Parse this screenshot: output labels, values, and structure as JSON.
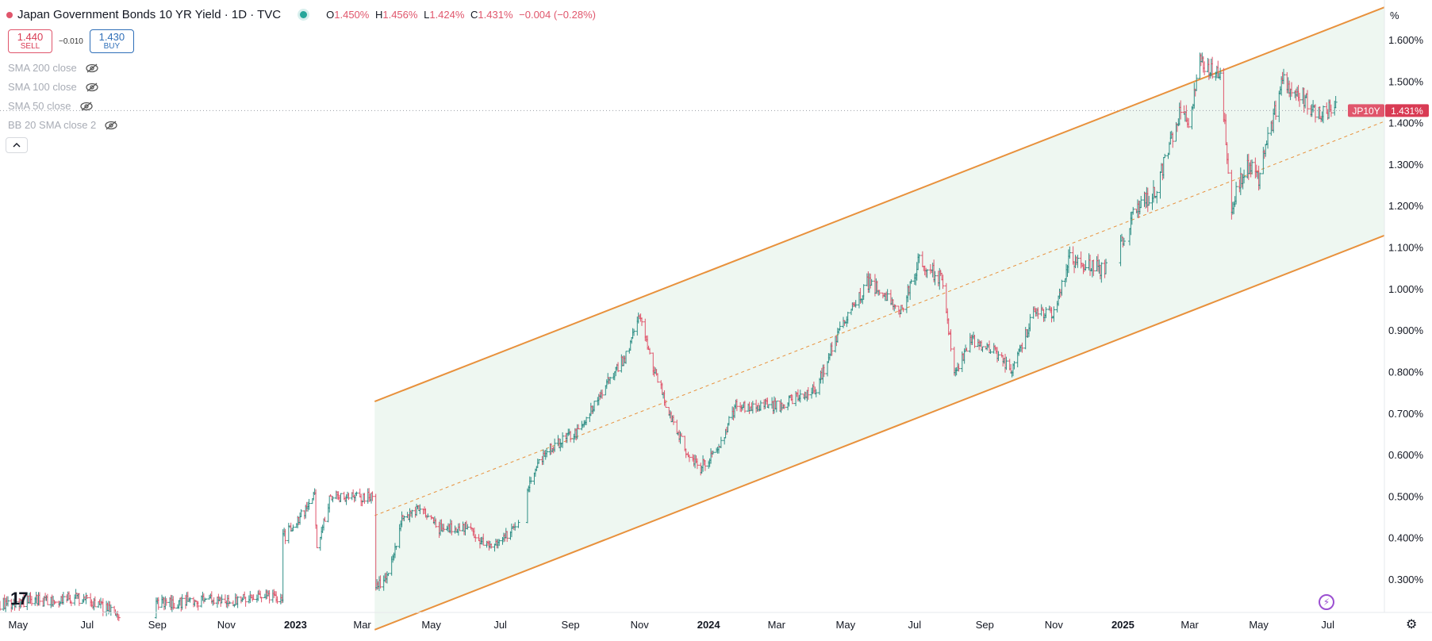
{
  "header": {
    "symbol_title": "Japan Government Bonds 10 YR Yield · 1D · TVC",
    "ohlc": {
      "o_label": "O",
      "o": "1.450%",
      "h_label": "H",
      "h": "1.456%",
      "l_label": "L",
      "l": "1.424%",
      "c_label": "C",
      "c": "1.431%",
      "change": "−0.004 (−0.28%)"
    }
  },
  "trade": {
    "sell_price": "1.440",
    "sell_label": "SELL",
    "spread": "−0.010",
    "buy_price": "1.430",
    "buy_label": "BUY"
  },
  "indicators": [
    {
      "label": "SMA 200 close",
      "icon": "eye-off-icon"
    },
    {
      "label": "SMA 100 close",
      "icon": "eye-off-icon"
    },
    {
      "label": "SMA 50 close",
      "icon": "eye-off-icon"
    },
    {
      "label": "BB 20 SMA close 2",
      "icon": "eye-off-icon"
    }
  ],
  "price_axis": {
    "unit": "%",
    "ticks": [
      "1.600%",
      "1.500%",
      "1.400%",
      "1.300%",
      "1.200%",
      "1.100%",
      "1.000%",
      "0.900%",
      "0.800%",
      "0.700%",
      "0.600%",
      "0.500%",
      "0.400%",
      "0.300%"
    ]
  },
  "last_price": {
    "symbol_tag": "JP10Y",
    "value": "1.431%"
  },
  "logo_text": "17",
  "colors": {
    "up": "#2f8f86",
    "down": "#e0566c",
    "channel": "#e8913c",
    "channel_fill": "#eef7f1",
    "badge_tag": "#e0566c",
    "badge_value": "#d93b54"
  },
  "chart_data": {
    "type": "ohlc",
    "title": "Japan Government Bonds 10 YR Yield · 1D · TVC",
    "ylabel": "%",
    "ylim": [
      0.25,
      1.68
    ],
    "x_range": [
      "2022-04-15",
      "2025-08-20"
    ],
    "x_ticks": [
      {
        "label": "May",
        "date": "2022-05-01"
      },
      {
        "label": "Jul",
        "date": "2022-07-01"
      },
      {
        "label": "Sep",
        "date": "2022-09-01"
      },
      {
        "label": "Nov",
        "date": "2022-11-01"
      },
      {
        "label": "2023",
        "date": "2023-01-01",
        "bold": true
      },
      {
        "label": "Mar",
        "date": "2023-03-01"
      },
      {
        "label": "May",
        "date": "2023-05-01"
      },
      {
        "label": "Jul",
        "date": "2023-07-01"
      },
      {
        "label": "Sep",
        "date": "2023-09-01"
      },
      {
        "label": "Nov",
        "date": "2023-11-01"
      },
      {
        "label": "2024",
        "date": "2024-01-01",
        "bold": true
      },
      {
        "label": "Mar",
        "date": "2024-03-01"
      },
      {
        "label": "May",
        "date": "2024-05-01"
      },
      {
        "label": "Jul",
        "date": "2024-07-01"
      },
      {
        "label": "Sep",
        "date": "2024-09-01"
      },
      {
        "label": "Nov",
        "date": "2024-11-01"
      },
      {
        "label": "2025",
        "date": "2025-01-01",
        "bold": true
      },
      {
        "label": "Mar",
        "date": "2025-03-01"
      },
      {
        "label": "May",
        "date": "2025-05-01"
      },
      {
        "label": "Jul",
        "date": "2025-07-01"
      }
    ],
    "price_path": [
      [
        "2022-04-15",
        0.24
      ],
      [
        "2022-05-10",
        0.25
      ],
      [
        "2022-06-10",
        0.25
      ],
      [
        "2022-06-20",
        0.26
      ],
      [
        "2022-07-10",
        0.24
      ],
      [
        "2022-07-25",
        0.22
      ],
      [
        "2022-08-15",
        0.19
      ],
      [
        "2022-09-01",
        0.24
      ],
      [
        "2022-10-01",
        0.25
      ],
      [
        "2022-11-01",
        0.25
      ],
      [
        "2022-12-15",
        0.26
      ],
      [
        "2022-12-20",
        0.25
      ],
      [
        "2022-12-21",
        0.4
      ],
      [
        "2023-01-05",
        0.45
      ],
      [
        "2023-01-18",
        0.5
      ],
      [
        "2023-01-20",
        0.38
      ],
      [
        "2023-02-01",
        0.5
      ],
      [
        "2023-03-01",
        0.5
      ],
      [
        "2023-03-10",
        0.5
      ],
      [
        "2023-03-13",
        0.28
      ],
      [
        "2023-03-25",
        0.32
      ],
      [
        "2023-04-05",
        0.45
      ],
      [
        "2023-04-20",
        0.47
      ],
      [
        "2023-05-10",
        0.42
      ],
      [
        "2023-06-01",
        0.43
      ],
      [
        "2023-06-20",
        0.38
      ],
      [
        "2023-07-05",
        0.4
      ],
      [
        "2023-07-20",
        0.45
      ],
      [
        "2023-07-28",
        0.55
      ],
      [
        "2023-08-15",
        0.62
      ],
      [
        "2023-09-10",
        0.66
      ],
      [
        "2023-09-30",
        0.76
      ],
      [
        "2023-10-20",
        0.84
      ],
      [
        "2023-11-01",
        0.94
      ],
      [
        "2023-11-10",
        0.84
      ],
      [
        "2023-11-25",
        0.72
      ],
      [
        "2023-12-10",
        0.62
      ],
      [
        "2023-12-25",
        0.57
      ],
      [
        "2024-01-10",
        0.62
      ],
      [
        "2024-01-25",
        0.72
      ],
      [
        "2024-02-15",
        0.72
      ],
      [
        "2024-03-05",
        0.72
      ],
      [
        "2024-03-19",
        0.74
      ],
      [
        "2024-04-05",
        0.76
      ],
      [
        "2024-04-25",
        0.9
      ],
      [
        "2024-05-22",
        1.02
      ],
      [
        "2024-06-05",
        0.98
      ],
      [
        "2024-06-20",
        0.95
      ],
      [
        "2024-07-05",
        1.08
      ],
      [
        "2024-07-25",
        1.02
      ],
      [
        "2024-08-05",
        0.8
      ],
      [
        "2024-08-20",
        0.88
      ],
      [
        "2024-09-10",
        0.85
      ],
      [
        "2024-09-25",
        0.8
      ],
      [
        "2024-10-15",
        0.95
      ],
      [
        "2024-11-01",
        0.94
      ],
      [
        "2024-11-15",
        1.07
      ],
      [
        "2024-12-10",
        1.05
      ],
      [
        "2024-12-25",
        1.06
      ],
      [
        "2025-01-10",
        1.19
      ],
      [
        "2025-01-30",
        1.24
      ],
      [
        "2025-02-20",
        1.42
      ],
      [
        "2025-03-01",
        1.4
      ],
      [
        "2025-03-10",
        1.55
      ],
      [
        "2025-03-28",
        1.52
      ],
      [
        "2025-04-07",
        1.2
      ],
      [
        "2025-04-20",
        1.3
      ],
      [
        "2025-05-01",
        1.27
      ],
      [
        "2025-05-22",
        1.5
      ],
      [
        "2025-06-05",
        1.48
      ],
      [
        "2025-06-20",
        1.42
      ],
      [
        "2025-07-08",
        1.44
      ]
    ],
    "gaps": [
      [
        "2022-07-30",
        "2022-08-30"
      ],
      [
        "2023-07-18",
        "2023-07-24"
      ],
      [
        "2024-12-18",
        "2024-12-28"
      ],
      [
        "2025-01-03",
        "2025-01-06"
      ]
    ],
    "channel": {
      "start_date": "2023-03-12",
      "end_date": "2025-08-20",
      "upper": [
        0.73,
        1.68
      ],
      "mid": [
        0.455,
        1.405
      ],
      "lower": [
        0.18,
        1.13
      ]
    },
    "last": 1.431
  }
}
